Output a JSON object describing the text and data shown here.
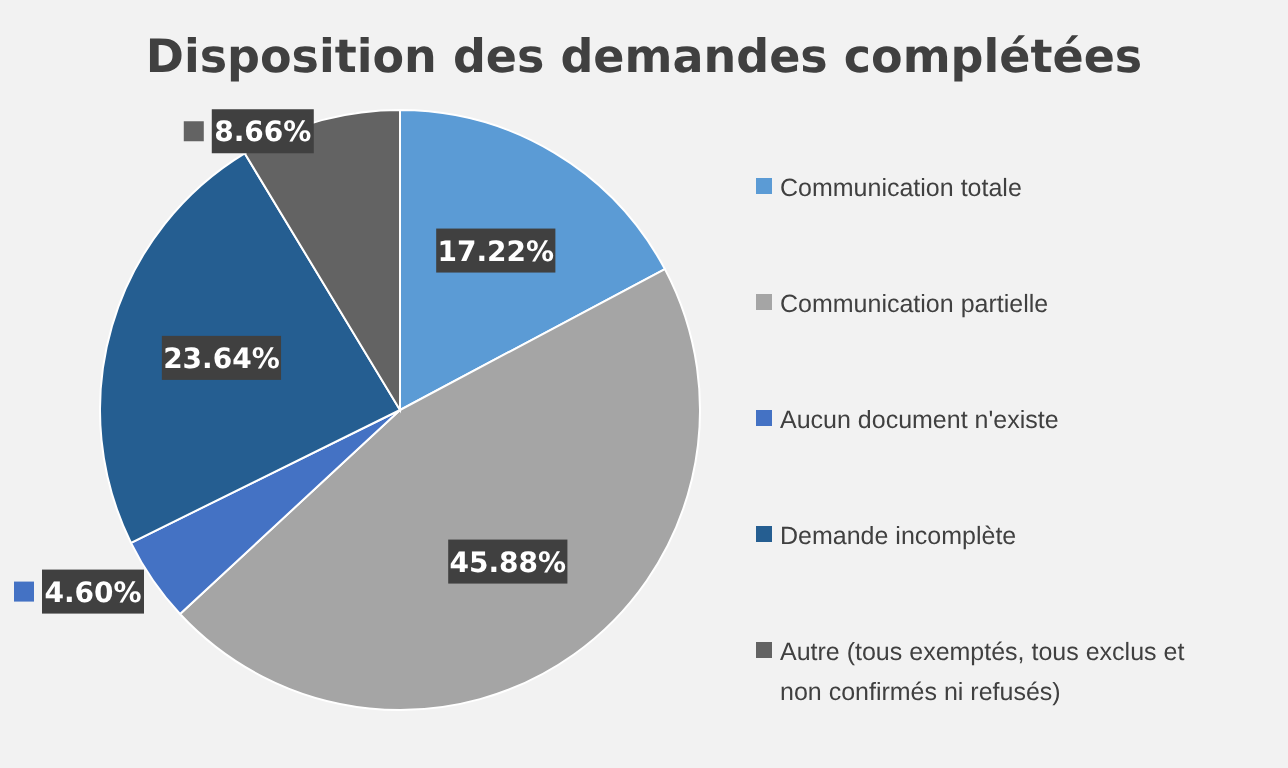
{
  "chart_data": {
    "type": "pie",
    "title": "Disposition des demandes complétées",
    "categories": [
      "Communication totale",
      "Communication partielle",
      "Aucun document n'existe",
      "Demande incomplète",
      "Autre (tous exemptés, tous exclus et non confirmés ni refusés)"
    ],
    "values": [
      17.22,
      45.88,
      4.6,
      23.64,
      8.66
    ],
    "colors": [
      "#5b9bd5",
      "#a5a5a5",
      "#4472c4",
      "#255e91",
      "#636363"
    ],
    "value_labels": [
      "17.22%",
      "45.88%",
      "4.60%",
      "23.64%",
      "8.66%"
    ],
    "legend": "right"
  }
}
